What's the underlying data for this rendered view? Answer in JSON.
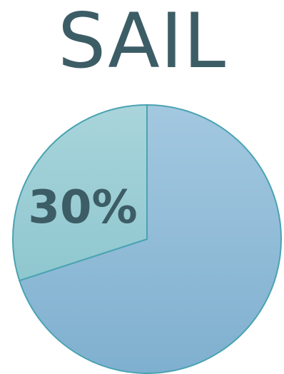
{
  "title": "SAIL",
  "chart_data": {
    "type": "pie",
    "title": "SAIL",
    "categories": [
      "",
      ""
    ],
    "values": [
      30,
      70
    ],
    "data_labels": [
      "30%",
      ""
    ],
    "colors": [
      "#a9d6db",
      "#93bcd8"
    ],
    "stroke_color": "#4aa3b2",
    "text_color": "#3d5d66"
  }
}
